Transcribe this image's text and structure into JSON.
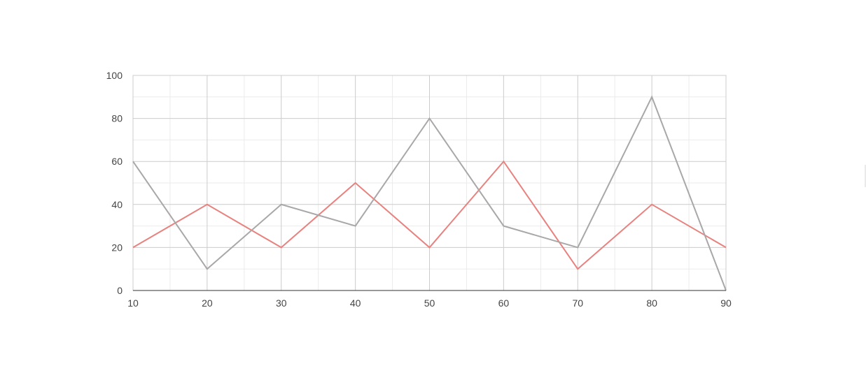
{
  "chart_data": {
    "type": "line",
    "title": "",
    "xlabel": "",
    "ylabel": "",
    "x": [
      10,
      20,
      30,
      40,
      50,
      60,
      70,
      80,
      90
    ],
    "xlim": [
      10,
      90
    ],
    "ylim": [
      0,
      100
    ],
    "x_ticks": [
      "10",
      "20",
      "30",
      "40",
      "50",
      "60",
      "70",
      "80",
      "90"
    ],
    "y_ticks": [
      "0",
      "20",
      "40",
      "60",
      "80",
      "100"
    ],
    "x_tick_values": [
      10,
      20,
      30,
      40,
      50,
      60,
      70,
      80,
      90
    ],
    "y_tick_values": [
      0,
      20,
      40,
      60,
      80,
      100
    ],
    "grid": true,
    "legend": "none",
    "series": [
      {
        "values": [
          20,
          40,
          20,
          50,
          20,
          60,
          10,
          40,
          20
        ],
        "color": "#e8827f"
      },
      {
        "values": [
          60,
          10,
          40,
          30,
          80,
          30,
          20,
          90,
          0
        ],
        "color": "#a9a7a7"
      }
    ]
  }
}
